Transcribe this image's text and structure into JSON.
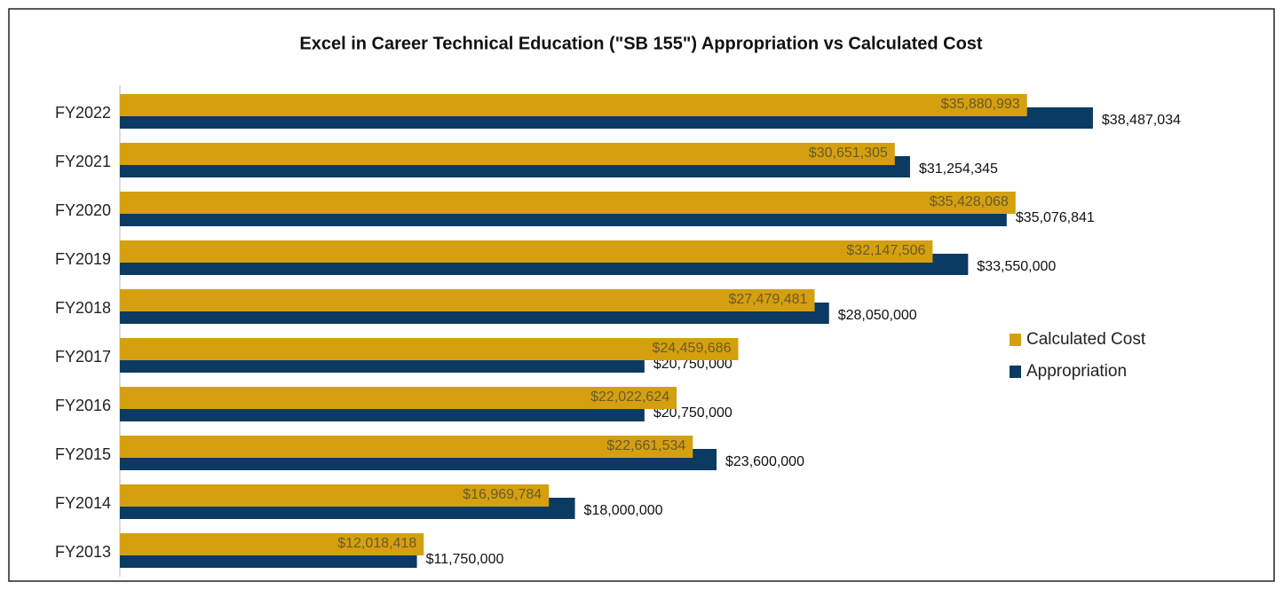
{
  "chart_data": {
    "type": "bar",
    "orientation": "horizontal",
    "title": "Excel in Career Technical Education  (\"SB 155\") Appropriation vs Calculated Cost",
    "categories": [
      "FY2022",
      "FY2021",
      "FY2020",
      "FY2019",
      "FY2018",
      "FY2017",
      "FY2016",
      "FY2015",
      "FY2014",
      "FY2013"
    ],
    "series": [
      {
        "name": "Calculated Cost",
        "color": "#D4A010",
        "values": [
          35880993,
          30651305,
          35428068,
          32147506,
          27479481,
          24459686,
          22022624,
          22661534,
          16969784,
          12018418
        ],
        "value_labels": [
          "$35,880,993",
          "$30,651,305",
          "$35,428,068",
          "$32,147,506",
          "$27,479,481",
          "$24,459,686",
          "$22,022,624",
          "$22,661,534",
          "$16,969,784",
          "$12,018,418"
        ]
      },
      {
        "name": "Appropriation",
        "color": "#0B3A63",
        "values": [
          38487034,
          31254345,
          35076841,
          33550000,
          28050000,
          20750000,
          20750000,
          23600000,
          18000000,
          11750000
        ],
        "value_labels": [
          "$38,487,034",
          "$31,254,345",
          "$35,076,841",
          "$33,550,000",
          "$28,050,000",
          "$20,750,000",
          "$20,750,000",
          "$23,600,000",
          "$18,000,000",
          "$11,750,000"
        ]
      }
    ],
    "xlim": [
      0,
      40000000
    ],
    "legend": "right"
  }
}
